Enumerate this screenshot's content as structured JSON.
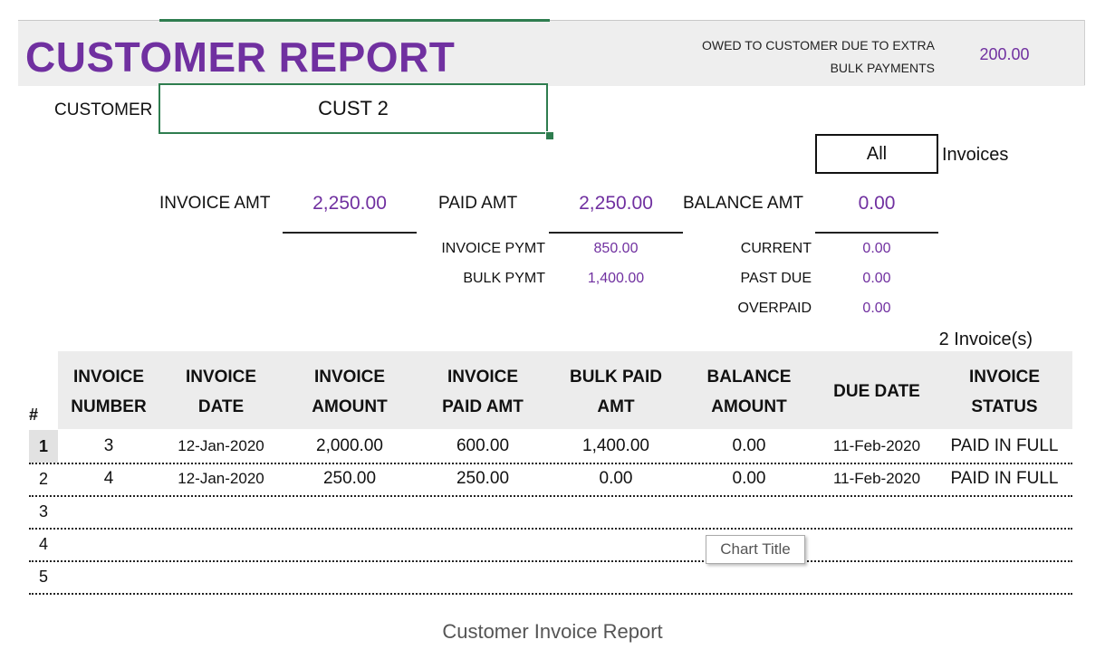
{
  "report": {
    "title": "CUSTOMER REPORT",
    "owed_label": "OWED TO CUSTOMER DUE TO EXTRA\nBULK PAYMENTS",
    "owed_value": "200.00"
  },
  "customer": {
    "label": "CUSTOMER",
    "value": "CUST 2"
  },
  "filter": {
    "value": "All",
    "suffix": "Invoices"
  },
  "summary": {
    "invoice_amt_label": "INVOICE AMT",
    "invoice_amt": "2,250.00",
    "paid_amt_label": "PAID AMT",
    "paid_amt": "2,250.00",
    "balance_amt_label": "BALANCE AMT",
    "balance_amt": "0.00",
    "invoice_pymt_label": "INVOICE  PYMT",
    "invoice_pymt": "850.00",
    "bulk_pymt_label": "BULK PYMT",
    "bulk_pymt": "1,400.00",
    "current_label": "CURRENT",
    "current": "0.00",
    "past_due_label": "PAST DUE",
    "past_due": "0.00",
    "overpaid_label": "OVERPAID",
    "overpaid": "0.00"
  },
  "invoice_count": "2 Invoice(s)",
  "table": {
    "hash": "#",
    "headers": [
      "INVOICE\nNUMBER",
      "INVOICE\nDATE",
      "INVOICE\nAMOUNT",
      "INVOICE\nPAID AMT",
      "BULK PAID\nAMT",
      "BALANCE\nAMOUNT",
      "DUE DATE",
      "INVOICE\nSTATUS"
    ],
    "rows": [
      {
        "num": "1",
        "cells": [
          "3",
          "12-Jan-2020",
          "2,000.00",
          "600.00",
          "1,400.00",
          "0.00",
          "11-Feb-2020",
          "PAID IN FULL"
        ]
      },
      {
        "num": "2",
        "cells": [
          "4",
          "12-Jan-2020",
          "250.00",
          "250.00",
          "0.00",
          "0.00",
          "11-Feb-2020",
          "PAID IN FULL"
        ]
      },
      {
        "num": "3",
        "cells": [
          "",
          "",
          "",
          "",
          "",
          "",
          "",
          ""
        ]
      },
      {
        "num": "4",
        "cells": [
          "",
          "",
          "",
          "",
          "",
          "",
          "",
          ""
        ]
      },
      {
        "num": "5",
        "cells": [
          "",
          "",
          "",
          "",
          "",
          "",
          "",
          ""
        ]
      }
    ]
  },
  "chart_title": "Chart Title",
  "caption": "Customer Invoice Report",
  "colors": {
    "accent": "#7030a0",
    "selection": "#2e7d4f"
  }
}
